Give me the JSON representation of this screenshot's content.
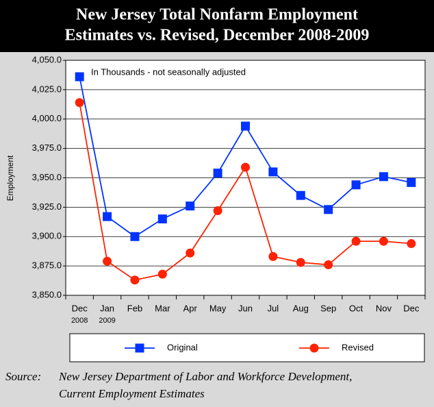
{
  "chart_data": {
    "type": "line",
    "title_lines": [
      "New Jersey Total Nonfarm Employment",
      "Estimates vs. Revised, December 2008-2009"
    ],
    "y_label": "Employment",
    "annotation": "In Thousands - not seasonally adjusted",
    "categories": [
      "Dec",
      "Jan",
      "Feb",
      "Mar",
      "Apr",
      "May",
      "Jun",
      "Jul",
      "Aug",
      "Sep",
      "Oct",
      "Nov",
      "Dec"
    ],
    "category_years": [
      "2008",
      "2009"
    ],
    "series": [
      {
        "name": "Original",
        "color": "#0033ff",
        "marker": "square",
        "values": [
          4036,
          3917,
          3900,
          3915,
          3926,
          3954,
          3994,
          3955,
          3935,
          3923,
          3944,
          3951,
          3946
        ]
      },
      {
        "name": "Revised",
        "color": "#ff2200",
        "marker": "circle",
        "values": [
          4014,
          3879,
          3863,
          3868,
          3886,
          3922,
          3959,
          3883,
          3878,
          3876,
          3896,
          3896,
          3894
        ]
      }
    ],
    "ylim": [
      3850,
      4050
    ],
    "yticks": [
      {
        "value": 3850,
        "label": "3,850.0"
      },
      {
        "value": 3875,
        "label": "3,875.0"
      },
      {
        "value": 3900,
        "label": "3,900.0"
      },
      {
        "value": 3925,
        "label": "3,925.0"
      },
      {
        "value": 3950,
        "label": "3,950.0"
      },
      {
        "value": 3975,
        "label": "3,975.0"
      },
      {
        "value": 4000,
        "label": "4,000.0"
      },
      {
        "value": 4025,
        "label": "4,025.0"
      },
      {
        "value": 4050,
        "label": "4,050.0"
      }
    ],
    "grid": true,
    "source_label": "Source:",
    "source_lines": [
      "New Jersey Department of Labor and Workforce Development,",
      "Current Employment Estimates"
    ]
  }
}
